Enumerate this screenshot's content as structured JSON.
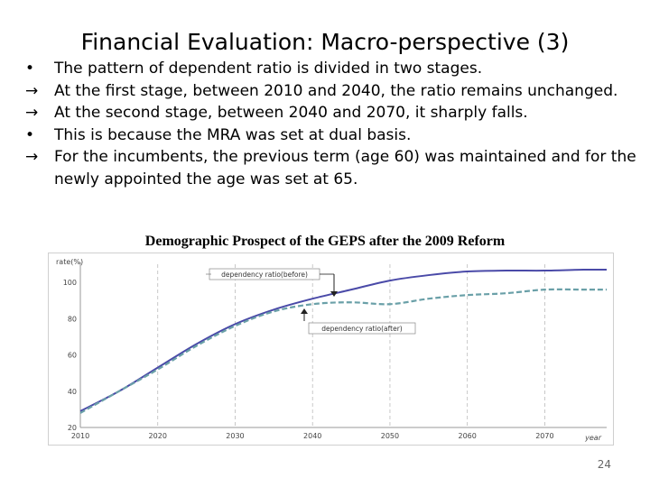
{
  "slide": {
    "title": "Financial Evaluation: Macro-perspective (3)",
    "page_number": "24",
    "bullets": [
      {
        "marker": "•",
        "text": "The pattern of dependent ratio is divided in two stages."
      },
      {
        "marker": "→",
        "text": "At the first stage, between 2010 and 2040, the ratio remains unchanged."
      },
      {
        "marker": "→",
        "text": "At the second stage, between 2040 and 2070, it sharply falls."
      },
      {
        "marker": "•",
        "text": "This is because the MRA was set at dual basis."
      },
      {
        "marker": "→",
        "text": "For the incumbents, the previous term (age 60) was maintained and for the newly appointed the age was set at 65."
      }
    ],
    "chart_title": "Demographic Prospect of the GEPS after the 2009 Reform"
  },
  "chart_data": {
    "type": "line",
    "ylabel": "rate(%)",
    "xlabel": "year",
    "xlim": [
      2010,
      2078
    ],
    "ylim": [
      20,
      110
    ],
    "x_ticks": [
      2010,
      2020,
      2030,
      2040,
      2050,
      2060,
      2070
    ],
    "y_ticks": [
      20,
      40,
      60,
      80,
      100
    ],
    "grid": "vertical dashed",
    "x": [
      2010,
      2015,
      2020,
      2025,
      2030,
      2035,
      2040,
      2045,
      2050,
      2055,
      2060,
      2065,
      2070,
      2075,
      2078
    ],
    "series": [
      {
        "name": "dependency ratio(before)",
        "color": "#4a4aa8",
        "style": "solid",
        "values": [
          29,
          40,
          53,
          66,
          77,
          85,
          91,
          96,
          101,
          104,
          106,
          106.5,
          106.5,
          107,
          107
        ]
      },
      {
        "name": "dependency ratio(after)",
        "color": "#6aa0a8",
        "style": "dashed",
        "values": [
          28,
          40,
          52,
          65,
          76,
          84,
          88,
          89,
          88,
          91,
          93,
          94,
          96,
          96,
          96
        ]
      }
    ],
    "annotations": [
      "dependency ratio(before)",
      "dependency ratio(after)"
    ]
  }
}
